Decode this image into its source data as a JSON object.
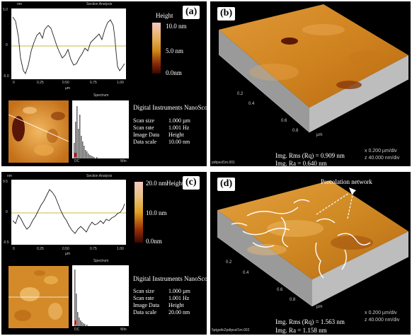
{
  "panel_a": {
    "label": "(a)",
    "section_title": "Section Analysis",
    "y_unit": "nm",
    "y_ticks": [
      "5.0",
      "0",
      "-5.0"
    ],
    "x_ticks": [
      "0",
      "0.25",
      "0.50",
      "0.75",
      "1.00"
    ],
    "x_unit": "µm",
    "spectrum_title": "Spectrum",
    "spectrum_x_left": "DC",
    "spectrum_x_right": "Win",
    "legend_title": "Height",
    "legend_ticks": [
      "10.0 nm",
      "5.0 nm",
      "0.0nm"
    ],
    "info_header": "Digital Instruments NanoScope",
    "info": [
      {
        "key": "Scan size",
        "value": "1.000 µm"
      },
      {
        "key": "Scan rate",
        "value": "1.001 Hz"
      },
      {
        "key": "Image Data",
        "value": "Height"
      },
      {
        "key": "Data scale",
        "value": "10.00 nm"
      }
    ]
  },
  "panel_b": {
    "label": "(b)",
    "axis_ticks": [
      "0.2",
      "0.4",
      "0.6",
      "0.8"
    ],
    "axis_unit": "µm",
    "rms": "Img. Rms (Rq) = 0.909 nm",
    "ra": "Img. Ra = 0.640 nm",
    "scale_x": "x  0.200 µm/div",
    "scale_z": "z  40.000 nm/div",
    "filename": "pdtpssf1m.001"
  },
  "panel_c": {
    "label": "(c)",
    "section_title": "Section Analysis",
    "y_unit": "nm",
    "y_ticks": [
      "9.5",
      "0",
      "-9.5"
    ],
    "x_ticks": [
      "0",
      "0.25",
      "0.50",
      "0.75",
      "1.00"
    ],
    "x_unit": "µm",
    "spectrum_title": "Spectrum",
    "spectrum_x_left": "DC",
    "spectrum_x_right": "Win",
    "legend_title": "Height",
    "legend_ticks": [
      "20.0 nm",
      "10.0 nm",
      "0.0nm"
    ],
    "info_header": "Digital Instruments NanoScope",
    "info": [
      {
        "key": "Scan size",
        "value": "1.000 µm"
      },
      {
        "key": "Scan rate",
        "value": "1.001 Hz"
      },
      {
        "key": "Image Data",
        "value": "Height"
      },
      {
        "key": "Data scale",
        "value": "20.00 nm"
      }
    ]
  },
  "panel_d": {
    "label": "(d)",
    "annotation": "Percolation network",
    "axis_ticks": [
      "0.2",
      "0.4",
      "0.6",
      "0.8"
    ],
    "axis_unit": "µm",
    "rms": "Img. Rms (Rq) = 1.563 nm",
    "ra": "Img. Ra = 1.158 nm",
    "scale_x": "x  0.200 µm/div",
    "scale_z": "z  40.000 nm/div",
    "filename": "5ptgotlo2pdtpssf1m.002"
  },
  "colors": {
    "panel_bg": "#000000",
    "afm_high": "#f5c27a",
    "afm_mid": "#c8781e",
    "afm_low": "#5a1a06",
    "legend_top": "#f4c9c0",
    "legend_mid": "#e0a020",
    "legend_bottom": "#4a0c04"
  }
}
